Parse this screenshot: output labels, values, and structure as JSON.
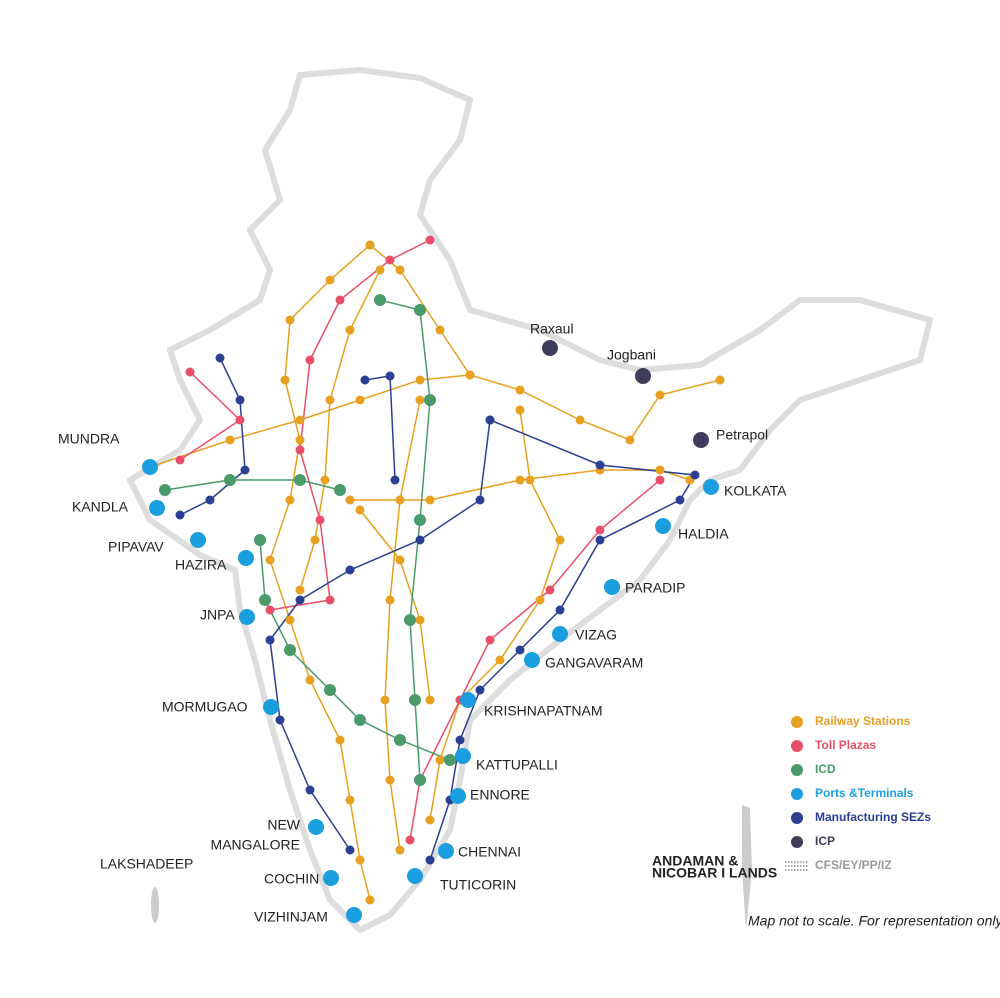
{
  "ports": [
    {
      "label": [
        "MUNDRA"
      ]
    },
    {
      "label": [
        "KANDLA"
      ]
    },
    {
      "label": [
        "PIPAVAV"
      ]
    },
    {
      "label": [
        "HAZIRA"
      ]
    },
    {
      "label": [
        "JNPA"
      ]
    },
    {
      "label": [
        "MORMUGAO"
      ]
    },
    {
      "label": [
        "NEW",
        "MANGALORE"
      ]
    },
    {
      "label": [
        "COCHIN"
      ]
    },
    {
      "label": [
        "VIZHINJAM"
      ]
    },
    {
      "label": [
        "TUTICORIN"
      ]
    },
    {
      "label": [
        "CHENNAI"
      ]
    },
    {
      "label": [
        "ENNORE"
      ]
    },
    {
      "label": [
        "KATTUPALLI"
      ]
    },
    {
      "label": [
        "KRISHNAPATNAM"
      ]
    },
    {
      "label": [
        "GANGAVARAM"
      ]
    },
    {
      "label": [
        "VIZAG"
      ]
    },
    {
      "label": [
        "PARADIP"
      ]
    },
    {
      "label": [
        "HALDIA"
      ]
    },
    {
      "label": [
        "KOLKATA"
      ]
    }
  ],
  "icps": [
    {
      "label": "Raxaul"
    },
    {
      "label": "Jogbani"
    },
    {
      "label": "Petrapol"
    }
  ],
  "regions": {
    "lakshadeep": "LAKSHADEEP",
    "andaman": [
      "ANDAMAN &",
      "NICOBAR I LANDS"
    ]
  },
  "legend": [
    {
      "label": "Railway Stations"
    },
    {
      "label": "Toll Plazas"
    },
    {
      "label": "ICD"
    },
    {
      "label": "Ports &Terminals"
    },
    {
      "label": "Manufacturing SEZs"
    },
    {
      "label": "ICP"
    },
    {
      "label": "CFS/EY/PP/IZ"
    }
  ],
  "note": "Map not to scale. For representation only."
}
